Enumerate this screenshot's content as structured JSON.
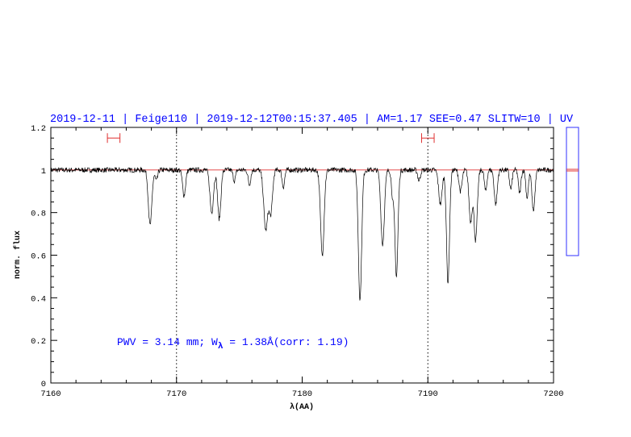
{
  "header": {
    "title": "2019-12-11 | Feige110 | 2019-12-12T00:15:37.405 | AM=1.17 SEE=0.47 SLITW=10 | UV"
  },
  "annotation": {
    "pwv_prefix": "PWV = 3.14 mm; W",
    "subscript": "λ",
    "pwv_suffix": " = 1.38Å(corr: 1.19)"
  },
  "colors": {
    "title": "#0000ff",
    "annotation": "#0000ff",
    "continuum": "#e03030",
    "markers": "#e03030",
    "spectrum": "#000000",
    "side_panel": "#3030ff"
  },
  "chart_data": {
    "type": "line",
    "xlabel": "λ(AA)",
    "ylabel": "norm. flux",
    "xlim": [
      7160,
      7200
    ],
    "ylim": [
      0,
      1.2
    ],
    "xticks": [
      7160,
      7170,
      7180,
      7190,
      7200
    ],
    "yticks": [
      0,
      0.2,
      0.4,
      0.6,
      0.8,
      1,
      1.2
    ],
    "ytick_labels": [
      "0",
      "0.2",
      "0.4",
      "0.6",
      "0.8",
      "1",
      "1.2"
    ],
    "dotted_verticals": [
      7170,
      7190
    ],
    "continuum_level": 1.0,
    "range_markers": [
      {
        "x": [
          7164.5,
          7165.5
        ],
        "y": 1.15
      },
      {
        "x": [
          7189.5,
          7190.5
        ],
        "y": 1.15
      }
    ],
    "absorption_lines": [
      {
        "center": 7167.9,
        "depth": 0.26,
        "width": 0.14
      },
      {
        "center": 7168.4,
        "depth": 0.05,
        "width": 0.1
      },
      {
        "center": 7170.6,
        "depth": 0.12,
        "width": 0.12
      },
      {
        "center": 7172.8,
        "depth": 0.2,
        "width": 0.14
      },
      {
        "center": 7173.4,
        "depth": 0.23,
        "width": 0.13
      },
      {
        "center": 7174.6,
        "depth": 0.05,
        "width": 0.1
      },
      {
        "center": 7175.8,
        "depth": 0.07,
        "width": 0.1
      },
      {
        "center": 7177.1,
        "depth": 0.28,
        "width": 0.16
      },
      {
        "center": 7177.5,
        "depth": 0.2,
        "width": 0.14
      },
      {
        "center": 7178.5,
        "depth": 0.08,
        "width": 0.1
      },
      {
        "center": 7181.6,
        "depth": 0.4,
        "width": 0.14
      },
      {
        "center": 7184.6,
        "depth": 0.61,
        "width": 0.13
      },
      {
        "center": 7186.4,
        "depth": 0.35,
        "width": 0.14
      },
      {
        "center": 7187.2,
        "depth": 0.12,
        "width": 0.1
      },
      {
        "center": 7187.5,
        "depth": 0.5,
        "width": 0.12
      },
      {
        "center": 7189.3,
        "depth": 0.05,
        "width": 0.1
      },
      {
        "center": 7191.0,
        "depth": 0.16,
        "width": 0.14
      },
      {
        "center": 7191.6,
        "depth": 0.53,
        "width": 0.12
      },
      {
        "center": 7192.6,
        "depth": 0.1,
        "width": 0.12
      },
      {
        "center": 7193.4,
        "depth": 0.24,
        "width": 0.13
      },
      {
        "center": 7193.8,
        "depth": 0.33,
        "width": 0.13
      },
      {
        "center": 7194.6,
        "depth": 0.1,
        "width": 0.1
      },
      {
        "center": 7195.4,
        "depth": 0.16,
        "width": 0.12
      },
      {
        "center": 7196.6,
        "depth": 0.09,
        "width": 0.1
      },
      {
        "center": 7197.3,
        "depth": 0.11,
        "width": 0.1
      },
      {
        "center": 7197.9,
        "depth": 0.13,
        "width": 0.1
      },
      {
        "center": 7198.4,
        "depth": 0.19,
        "width": 0.12
      }
    ],
    "noise_amplitude": 0.012,
    "side_panel": {
      "ylim": [
        0.6,
        1.2
      ],
      "marker": 1.0
    }
  }
}
